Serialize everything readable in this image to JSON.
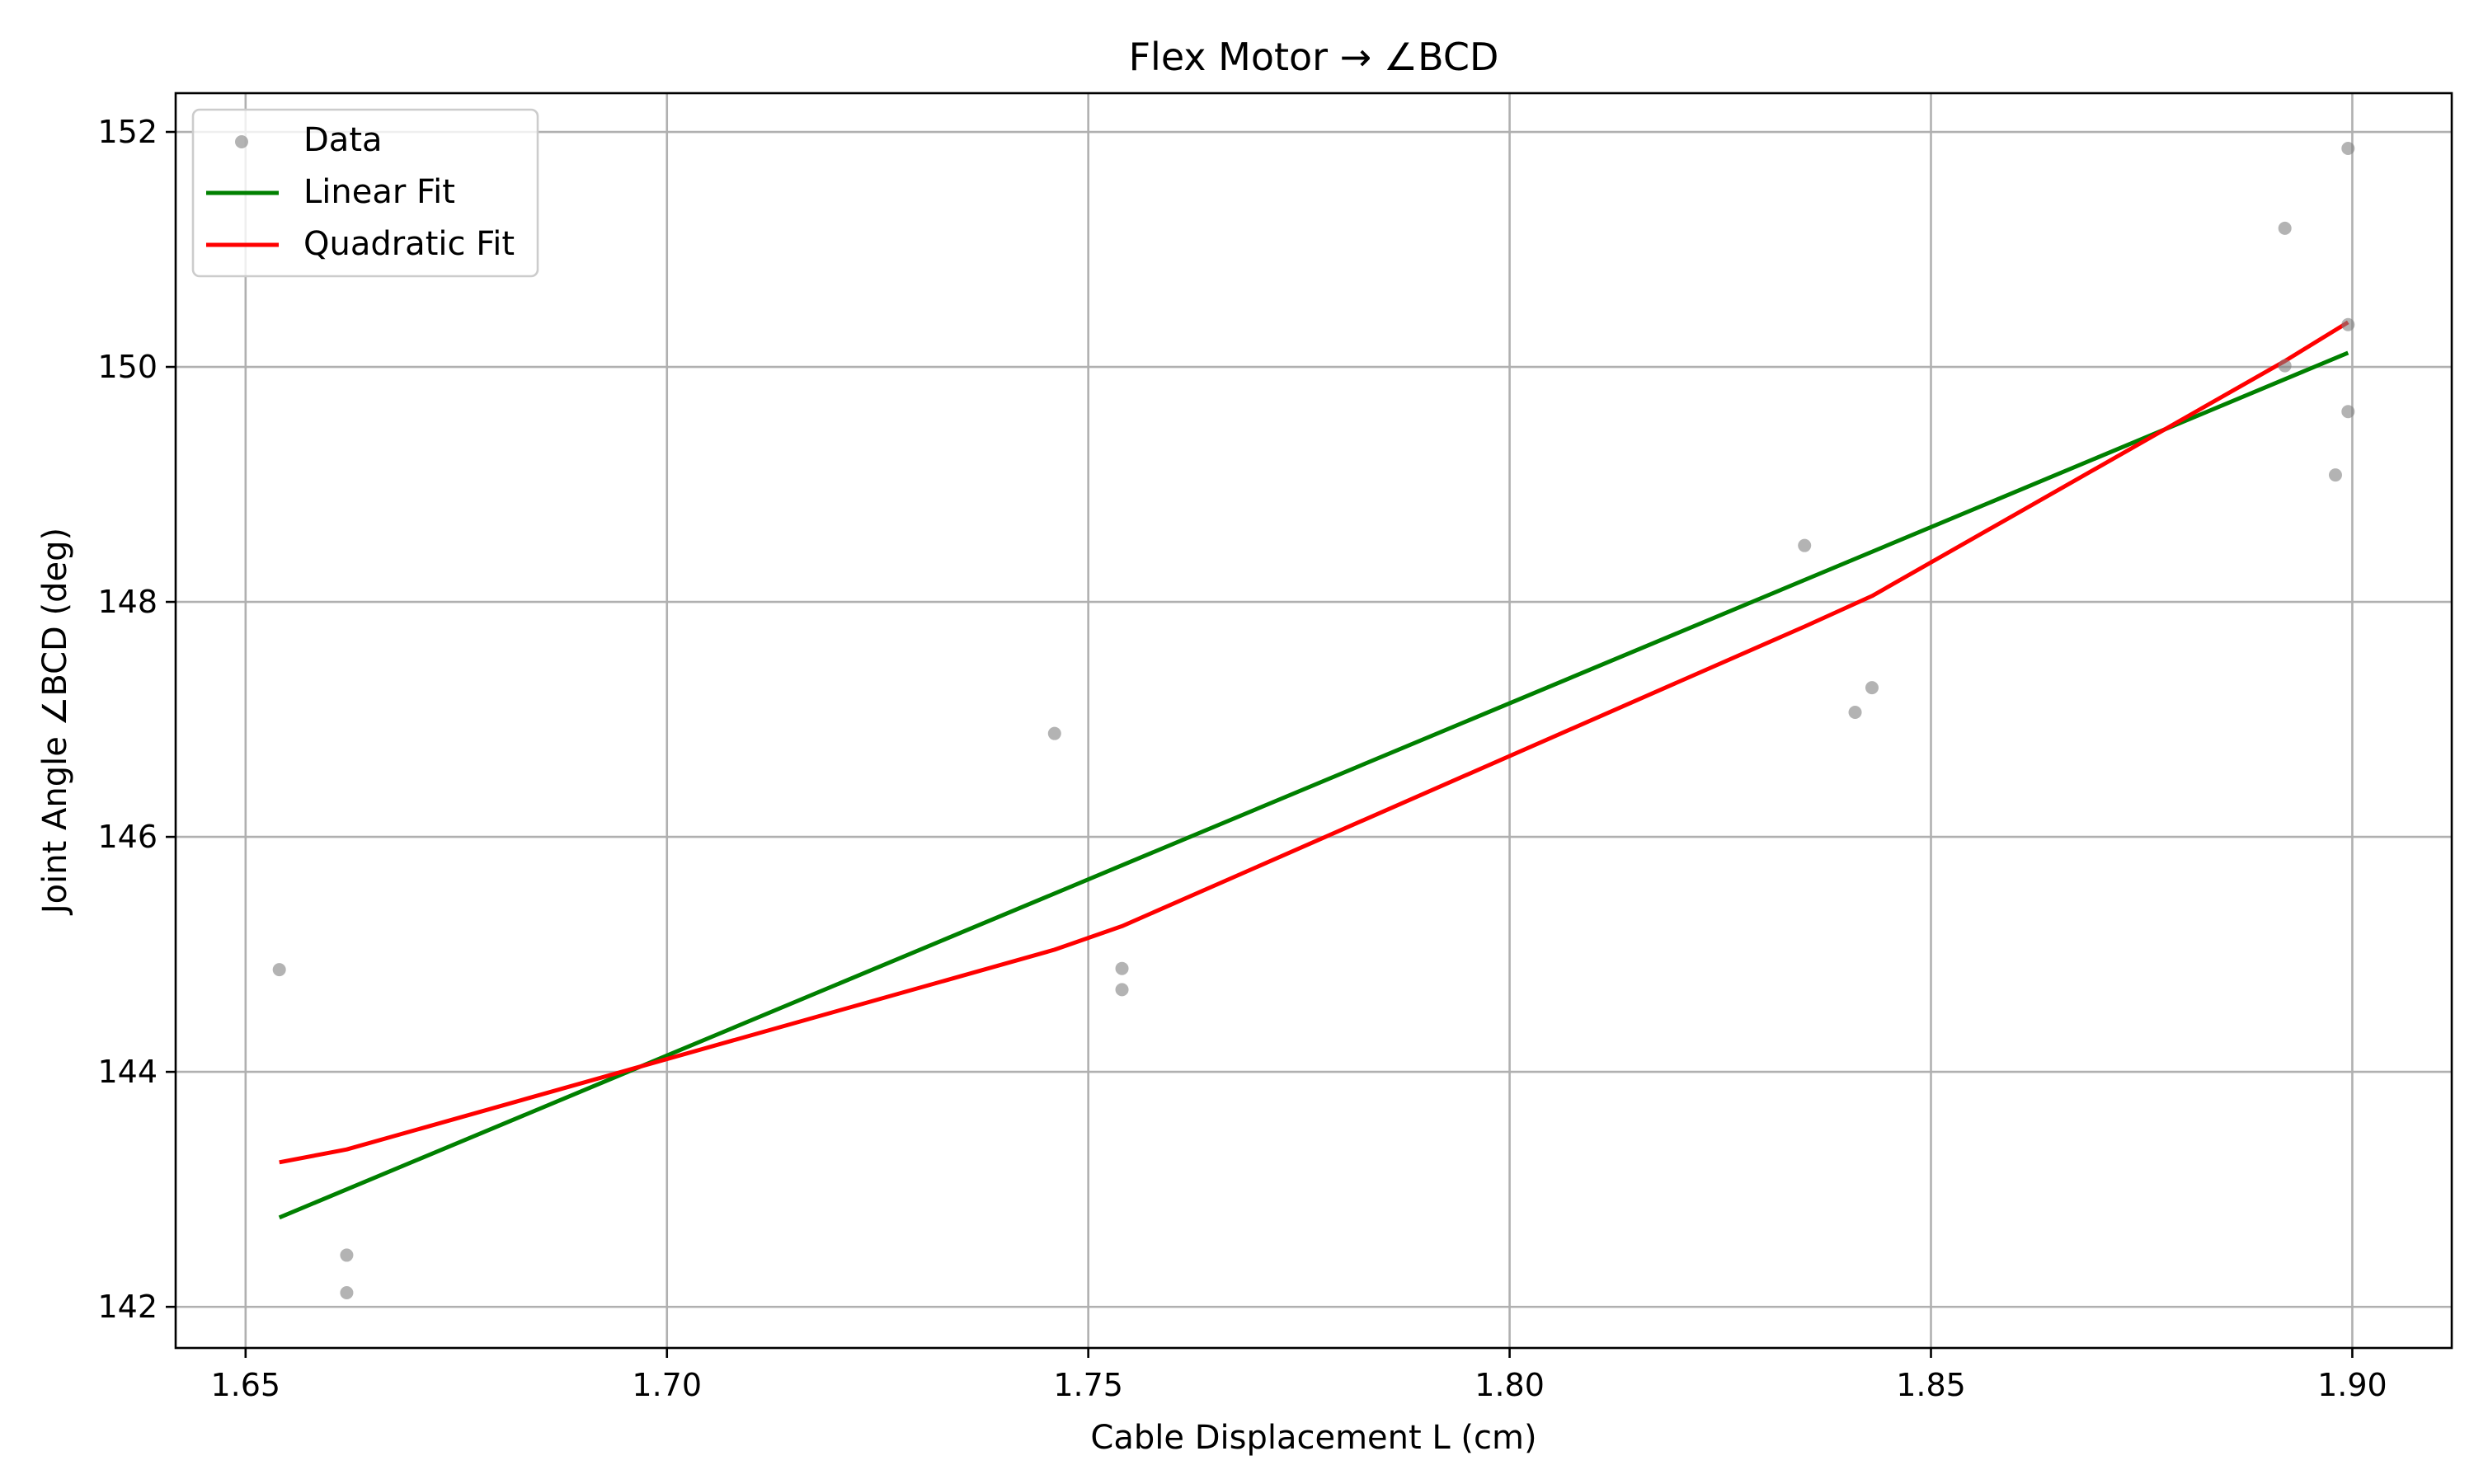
{
  "chart_data": {
    "type": "scatter",
    "title": "Flex Motor → ∠BCD",
    "xlabel": "Cable Displacement L (cm)",
    "ylabel": "Joint Angle ∠BCD (deg)",
    "xlim": [
      1.6417,
      1.9118
    ],
    "ylim": [
      141.65,
      152.33
    ],
    "xticks": [
      1.65,
      1.7,
      1.75,
      1.8,
      1.85,
      1.9
    ],
    "xtick_labels": [
      "1.65",
      "1.70",
      "1.75",
      "1.80",
      "1.85",
      "1.90"
    ],
    "yticks": [
      142,
      144,
      146,
      148,
      150,
      152
    ],
    "ytick_labels": [
      "142",
      "144",
      "146",
      "148",
      "150",
      "152"
    ],
    "grid": true,
    "legend_position": "top-left",
    "series": [
      {
        "name": "Data",
        "kind": "scatter",
        "color": "#808080",
        "points": [
          [
            1.654,
            144.87
          ],
          [
            1.662,
            142.44
          ],
          [
            1.662,
            142.12
          ],
          [
            1.746,
            146.88
          ],
          [
            1.754,
            144.88
          ],
          [
            1.754,
            144.7
          ],
          [
            1.835,
            148.48
          ],
          [
            1.841,
            147.06
          ],
          [
            1.843,
            147.27
          ],
          [
            1.892,
            151.18
          ],
          [
            1.892,
            150.01
          ],
          [
            1.898,
            149.08
          ],
          [
            1.8995,
            151.86
          ],
          [
            1.8995,
            150.36
          ],
          [
            1.8995,
            149.62
          ]
        ]
      },
      {
        "name": "Linear Fit",
        "kind": "line",
        "color": "#008000",
        "points": [
          [
            1.654,
            142.76
          ],
          [
            1.8995,
            150.12
          ]
        ]
      },
      {
        "name": "Quadratic Fit",
        "kind": "line",
        "color": "#ff0000",
        "points": [
          [
            1.654,
            143.23
          ],
          [
            1.662,
            143.34
          ],
          [
            1.746,
            145.04
          ],
          [
            1.754,
            145.24
          ],
          [
            1.835,
            147.79
          ],
          [
            1.843,
            148.05
          ],
          [
            1.892,
            150.05
          ],
          [
            1.8995,
            150.38
          ]
        ]
      }
    ]
  }
}
